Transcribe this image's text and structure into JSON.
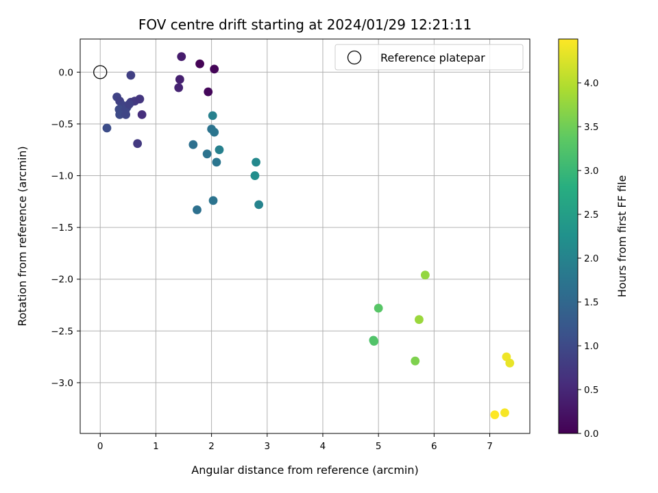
{
  "chart_data": {
    "type": "scatter",
    "title": "FOV centre drift starting at 2024/01/29 12:21:11",
    "xlabel": "Angular distance from reference (arcmin)",
    "ylabel": "Rotation from reference (arcmin)",
    "xlim": [
      -0.36,
      7.72
    ],
    "ylim": [
      -3.49,
      0.32
    ],
    "xticks": [
      0,
      1,
      2,
      3,
      4,
      5,
      6,
      7
    ],
    "yticks": [
      0.0,
      -0.5,
      -1.0,
      -1.5,
      -2.0,
      -2.5,
      -3.0
    ],
    "xtick_labels": [
      "0",
      "1",
      "2",
      "3",
      "4",
      "5",
      "6",
      "7"
    ],
    "ytick_labels": [
      "0.0",
      "−0.5",
      "−1.0",
      "−1.5",
      "−2.0",
      "−2.5",
      "−3.0"
    ],
    "grid": true,
    "legend_position": "top-right",
    "reference": {
      "name": "Reference platepar",
      "x": 0,
      "y": 0
    },
    "colorbar": {
      "label": "Hours from first FF file",
      "colormap": "viridis",
      "range": [
        0.0,
        4.5
      ],
      "ticks": [
        0.0,
        0.5,
        1.0,
        1.5,
        2.0,
        2.5,
        3.0,
        3.5,
        4.0
      ],
      "tick_labels": [
        "0.0",
        "0.5",
        "1.0",
        "1.5",
        "2.0",
        "2.5",
        "3.0",
        "3.5",
        "4.0"
      ]
    },
    "points": [
      {
        "x": 1.79,
        "y": 0.08,
        "h": 0.02
      },
      {
        "x": 2.05,
        "y": 0.03,
        "h": 0.05
      },
      {
        "x": 1.94,
        "y": -0.19,
        "h": 0.08
      },
      {
        "x": 1.46,
        "y": 0.15,
        "h": 0.35
      },
      {
        "x": 1.43,
        "y": -0.07,
        "h": 0.4
      },
      {
        "x": 1.41,
        "y": -0.15,
        "h": 0.45
      },
      {
        "x": 0.55,
        "y": -0.03,
        "h": 0.85
      },
      {
        "x": 0.3,
        "y": -0.24,
        "h": 0.9
      },
      {
        "x": 0.35,
        "y": -0.28,
        "h": 0.85
      },
      {
        "x": 0.55,
        "y": -0.29,
        "h": 0.8
      },
      {
        "x": 0.62,
        "y": -0.28,
        "h": 0.75
      },
      {
        "x": 0.71,
        "y": -0.26,
        "h": 0.7
      },
      {
        "x": 0.4,
        "y": -0.32,
        "h": 0.9
      },
      {
        "x": 0.48,
        "y": -0.34,
        "h": 0.95
      },
      {
        "x": 0.34,
        "y": -0.36,
        "h": 1.0
      },
      {
        "x": 0.45,
        "y": -0.37,
        "h": 0.95
      },
      {
        "x": 0.52,
        "y": -0.31,
        "h": 0.85
      },
      {
        "x": 0.35,
        "y": -0.41,
        "h": 1.0
      },
      {
        "x": 0.46,
        "y": -0.41,
        "h": 0.95
      },
      {
        "x": 0.75,
        "y": -0.41,
        "h": 0.6
      },
      {
        "x": 0.12,
        "y": -0.54,
        "h": 1.05
      },
      {
        "x": 0.67,
        "y": -0.69,
        "h": 0.75
      },
      {
        "x": 2.02,
        "y": -0.42,
        "h": 1.95
      },
      {
        "x": 2.0,
        "y": -0.55,
        "h": 1.7
      },
      {
        "x": 2.05,
        "y": -0.58,
        "h": 1.75
      },
      {
        "x": 1.67,
        "y": -0.7,
        "h": 1.65
      },
      {
        "x": 2.14,
        "y": -0.75,
        "h": 1.95
      },
      {
        "x": 1.92,
        "y": -0.79,
        "h": 1.7
      },
      {
        "x": 2.09,
        "y": -0.87,
        "h": 1.75
      },
      {
        "x": 2.8,
        "y": -0.87,
        "h": 2.1
      },
      {
        "x": 2.78,
        "y": -1.0,
        "h": 2.2
      },
      {
        "x": 2.03,
        "y": -1.24,
        "h": 1.7
      },
      {
        "x": 1.74,
        "y": -1.33,
        "h": 1.65
      },
      {
        "x": 2.85,
        "y": -1.28,
        "h": 2.0
      },
      {
        "x": 5.84,
        "y": -1.96,
        "h": 3.75
      },
      {
        "x": 5.0,
        "y": -2.28,
        "h": 3.3
      },
      {
        "x": 5.73,
        "y": -2.39,
        "h": 3.8
      },
      {
        "x": 4.91,
        "y": -2.59,
        "h": 3.2
      },
      {
        "x": 4.92,
        "y": -2.6,
        "h": 3.25
      },
      {
        "x": 5.66,
        "y": -2.79,
        "h": 3.6
      },
      {
        "x": 7.3,
        "y": -2.75,
        "h": 4.4
      },
      {
        "x": 7.36,
        "y": -2.81,
        "h": 4.35
      },
      {
        "x": 7.27,
        "y": -3.29,
        "h": 4.45
      },
      {
        "x": 7.09,
        "y": -3.31,
        "h": 4.5
      }
    ]
  }
}
